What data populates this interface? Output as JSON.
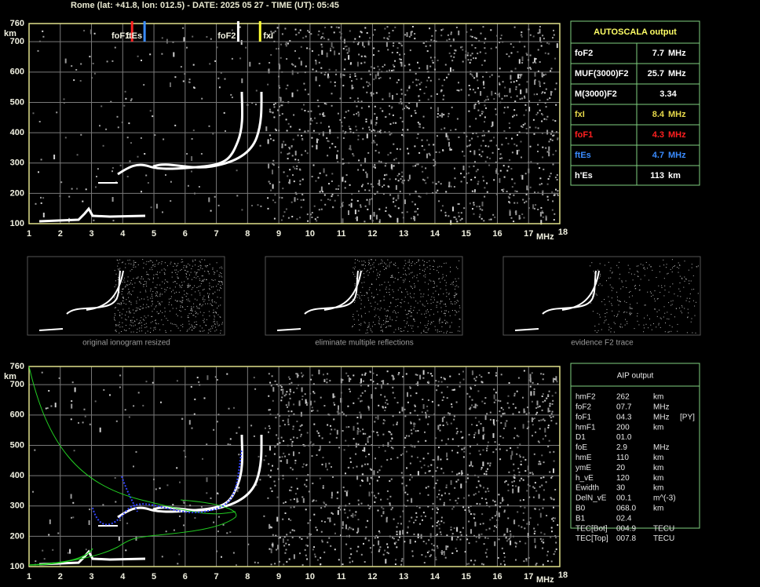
{
  "header": {
    "title": "Rome (lat: +41.8, lon: 012.5) - DATE: 2025 05 27 - TIME (UT): 05:45"
  },
  "axes": {
    "xticks": [
      1,
      2,
      3,
      4,
      5,
      6,
      7,
      8,
      9,
      10,
      11,
      12,
      13,
      14,
      15,
      16,
      17,
      18
    ],
    "xlim": [
      1,
      18
    ],
    "yticks": [
      100,
      200,
      300,
      400,
      500,
      600,
      700,
      760
    ],
    "ylim": [
      100,
      760
    ],
    "x_unit": "MHz",
    "y_unit": "km"
  },
  "markers": [
    {
      "label": "foF1",
      "freq": 4.3,
      "color": "#ff2020",
      "side": "left"
    },
    {
      "label": "ftEs",
      "freq": 4.7,
      "color": "#3a8cff",
      "side": "left"
    },
    {
      "label": "foF2",
      "freq": 7.7,
      "color": "#ffffff",
      "side": "left"
    },
    {
      "label": "fxI",
      "freq": 8.4,
      "color": "#ffff33",
      "side": "right"
    }
  ],
  "thumbnails": [
    {
      "caption": "original ionogram resized"
    },
    {
      "caption": "eliminate multiple reflections"
    },
    {
      "caption": "evidence F2 trace"
    }
  ],
  "autoscala": {
    "title": "AUTOSCALA output",
    "rows": [
      {
        "label": "foF2",
        "value": "7.7",
        "unit": "MHz",
        "color": "#ffffff"
      },
      {
        "label": "MUF(3000)F2",
        "value": "25.7",
        "unit": "MHz",
        "color": "#ffffff"
      },
      {
        "label": "M(3000)F2",
        "value": "3.34",
        "color": "#ffffff"
      },
      {
        "label": "fxI",
        "value": "8.4",
        "unit": "MHz",
        "color": "#e6d84a"
      },
      {
        "label": "foF1",
        "value": "4.3",
        "unit": "MHz",
        "color": "#ff2020"
      },
      {
        "label": "ftEs",
        "value": "4.7",
        "unit": "MHz",
        "color": "#3a8cff"
      },
      {
        "label": "h'Es",
        "value": "113",
        "unit": "km",
        "color": "#ffffff"
      }
    ]
  },
  "aip": {
    "title": "AIP output",
    "rows": [
      [
        "hmF2",
        "262",
        "km"
      ],
      [
        "foF2",
        "07.7",
        "MHz"
      ],
      [
        "foF1",
        "04.3",
        "MHz",
        "[PY]"
      ],
      [
        "hmF1",
        "200",
        "km"
      ],
      [
        "D1",
        "01.0"
      ],
      [
        "foE",
        "2.9",
        "MHz"
      ],
      [
        "hmE",
        "110",
        "km"
      ],
      [
        "ymE",
        "20",
        "km"
      ],
      [
        "h_vE",
        "120",
        "km"
      ],
      [
        "Ewidth",
        "30",
        "km"
      ],
      [
        "DelN_vE",
        "00.1",
        "m^(-3)"
      ],
      [
        "B0",
        "068.0",
        "km"
      ],
      [
        "B1",
        "02.4"
      ],
      [
        "TEC[Bot]",
        "004.9",
        "TECU"
      ],
      [
        "TEC[Top]",
        "007.8",
        "TECU"
      ]
    ]
  }
}
